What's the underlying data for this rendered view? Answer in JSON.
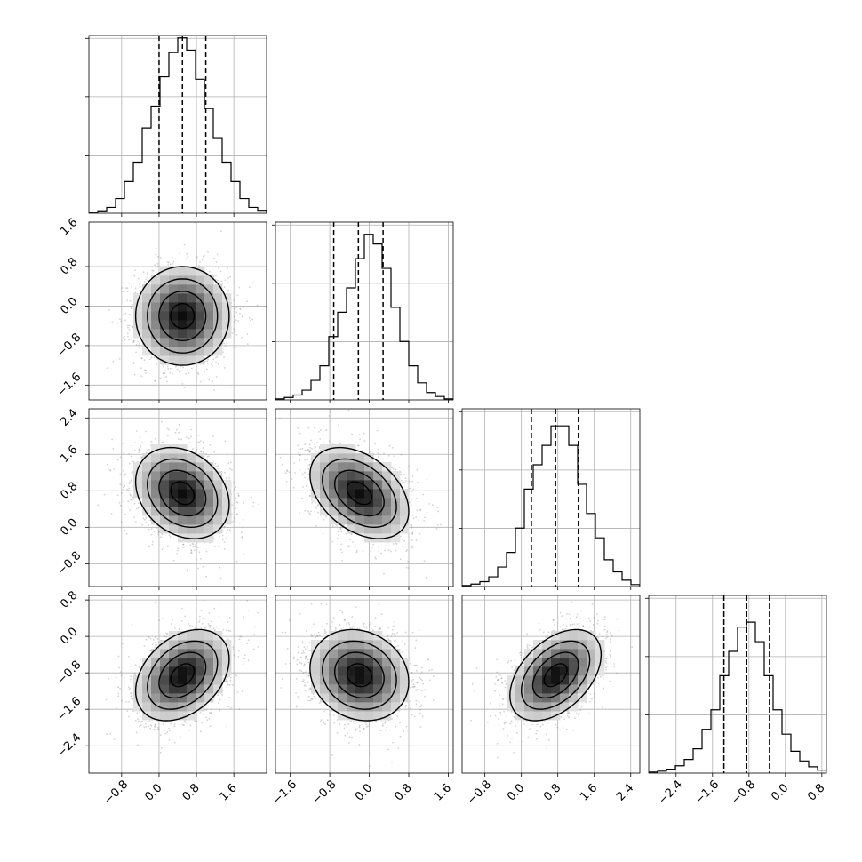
{
  "chart_data": {
    "type": "corner",
    "parameters": 4,
    "grid": true,
    "colors": {
      "hist": "#000000",
      "quantile": "#000000",
      "points": "#808080",
      "contour": "#000000",
      "gridline": "#b0b0b0"
    },
    "ranges": [
      [
        -1.5,
        2.3
      ],
      [
        -1.9,
        1.7
      ],
      [
        -1.3,
        2.6
      ],
      [
        -3.0,
        0.9
      ]
    ],
    "ticks": [
      [
        -0.8,
        0.0,
        0.8,
        1.6
      ],
      [
        -1.6,
        -0.8,
        0.0,
        0.8,
        1.6
      ],
      [
        -0.8,
        0.0,
        0.8,
        1.6,
        2.4
      ],
      [
        -2.4,
        -1.6,
        -0.8,
        0.0,
        0.8
      ]
    ],
    "tick_labels": [
      [
        "−0.8",
        "0.0",
        "0.8",
        "1.6"
      ],
      [
        "−1.6",
        "−0.8",
        "0.0",
        "0.8",
        "1.6"
      ],
      [
        "−0.8",
        "0.0",
        "0.8",
        "1.6",
        "2.4"
      ],
      [
        "−2.4",
        "−1.6",
        "−0.8",
        "0.0",
        "0.8"
      ]
    ],
    "quantiles": [
      [
        0.0,
        0.5,
        1.0
      ],
      [
        -0.72,
        -0.22,
        0.28
      ],
      [
        0.22,
        0.75,
        1.25
      ],
      [
        -1.35,
        -0.85,
        -0.35
      ]
    ],
    "histograms": [
      [
        0.2,
        0.5,
        1.2,
        3.0,
        6.5,
        10.5,
        17.5,
        22.0,
        28.0,
        33.0,
        36.0,
        33.5,
        27.5,
        21.5,
        15.5,
        10.5,
        6.5,
        3.0,
        1.2,
        0.6
      ],
      [
        0.2,
        0.5,
        1.0,
        2.0,
        4.0,
        7.0,
        13.0,
        18.0,
        23.0,
        29.0,
        34.0,
        32.0,
        27.0,
        19.0,
        12.0,
        7.0,
        3.5,
        1.5,
        0.7,
        0.2
      ],
      [
        0.2,
        0.5,
        1.0,
        2.0,
        4.0,
        7.0,
        12.0,
        20.0,
        25.0,
        29.0,
        33.0,
        33.0,
        29.0,
        21.0,
        15.0,
        10.0,
        5.5,
        3.0,
        1.3,
        0.4
      ],
      [
        0.2,
        0.4,
        0.8,
        1.5,
        2.8,
        5.0,
        9.0,
        13.0,
        20.0,
        25.0,
        30.0,
        31.0,
        27.0,
        20.0,
        13.0,
        8.0,
        4.5,
        2.5,
        1.3,
        0.6
      ]
    ],
    "hist_ymax": 36.5,
    "means": [
      0.5,
      -0.2,
      0.75,
      -0.85
    ],
    "sds": [
      0.5,
      0.5,
      0.5,
      0.5
    ],
    "correlations": [
      [
        1,
        3,
        0
      ],
      [
        2,
        0,
        -0.25
      ],
      [
        2,
        1,
        -0.4
      ],
      [
        3,
        0,
        0.35
      ],
      [
        3,
        1,
        -0.15
      ],
      [
        3,
        2,
        0.45
      ]
    ],
    "contour_levels_sigma": [
      0.5,
      1.0,
      1.5,
      2.0
    ],
    "scatter_points_per_panel": 2200,
    "histogram_bins": 20,
    "density_bins": 20
  }
}
